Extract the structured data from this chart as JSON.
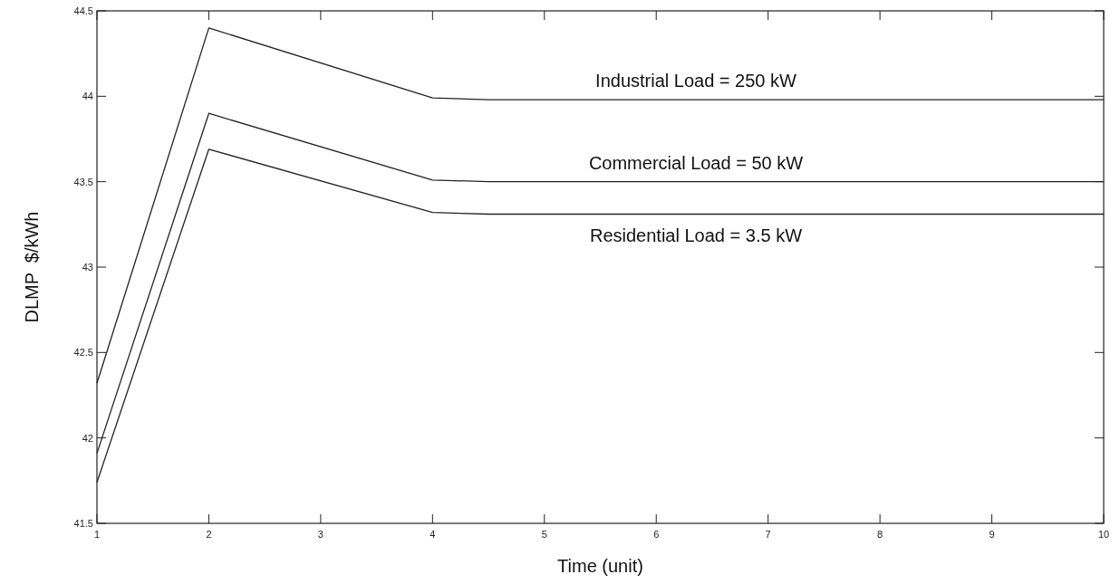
{
  "chart_data": {
    "type": "line",
    "xlabel": "Time (unit)",
    "ylabel": "DLMP  $/kWh",
    "x": [
      1,
      2,
      4,
      4.5,
      10
    ],
    "series": [
      {
        "name": "Industrial Load = 250 kW",
        "color": "#222222",
        "values": [
          42.32,
          44.4,
          43.99,
          43.98,
          43.98
        ]
      },
      {
        "name": "Commercial Load = 50 kW",
        "color": "#222222",
        "values": [
          41.91,
          43.9,
          43.51,
          43.5,
          43.5
        ]
      },
      {
        "name": "Residential Load = 3.5 kW",
        "color": "#222222",
        "values": [
          41.74,
          43.69,
          43.32,
          43.31,
          43.31
        ]
      }
    ],
    "xlim": [
      1,
      10
    ],
    "xticks": [
      1,
      2,
      3,
      4,
      5,
      6,
      7,
      8,
      9,
      10
    ],
    "ylim": [
      41.5,
      44.5
    ],
    "yticks": [
      41.5,
      42,
      42.5,
      43,
      43.5,
      44,
      44.5
    ],
    "grid": false
  }
}
